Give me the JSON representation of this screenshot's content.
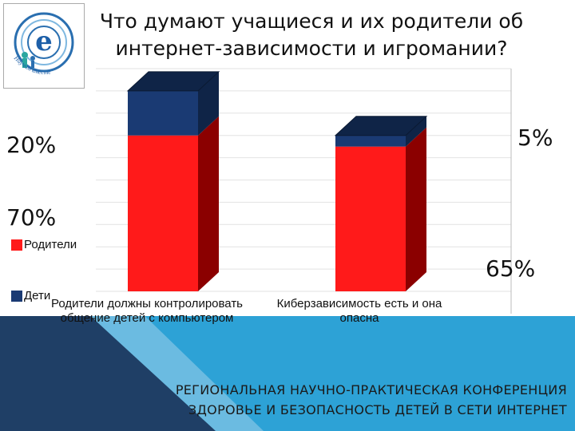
{
  "header": {
    "title_line1": "Что думают учащиеся и их родители об",
    "title_line2": "интернет-зависимости и игромании?",
    "logo_caption": "Научим вместе"
  },
  "chart_data": {
    "type": "bar",
    "stacked": true,
    "style": "3d",
    "categories": [
      "Родители должны контролировать общение детей с компьютером",
      "Киберзависимость есть и она опасна"
    ],
    "category_lines": [
      [
        "Родители должны контролировать",
        "общение детей с компьютером"
      ],
      [
        "Киберзависимость есть и она",
        "опасна"
      ]
    ],
    "series": [
      {
        "name": "Родители",
        "values": [
          70,
          65
        ],
        "labels": [
          "70%",
          "65%"
        ],
        "color": "#ff1a1a",
        "side_color": "#8b0000"
      },
      {
        "name": "Дети",
        "values": [
          20,
          5
        ],
        "labels": [
          "20%",
          "5%"
        ],
        "color": "#1a3a73",
        "side_color": "#0f2447"
      }
    ],
    "ylim": [
      0,
      100
    ],
    "legend": "left",
    "grid": true
  },
  "footer": {
    "line1": "РЕГИОНАЛЬНАЯ НАУЧНО-ПРАКТИЧЕСКАЯ КОНФЕРЕНЦИЯ",
    "line2": "ЗДОРОВЬЕ И БЕЗОПАСНОСТЬ ДЕТЕЙ В СЕТИ ИНТЕРНЕТ"
  },
  "colors": {
    "band": "#2da2d6",
    "band_dark": "#1f3f66",
    "band_light": "#86c6e6"
  }
}
